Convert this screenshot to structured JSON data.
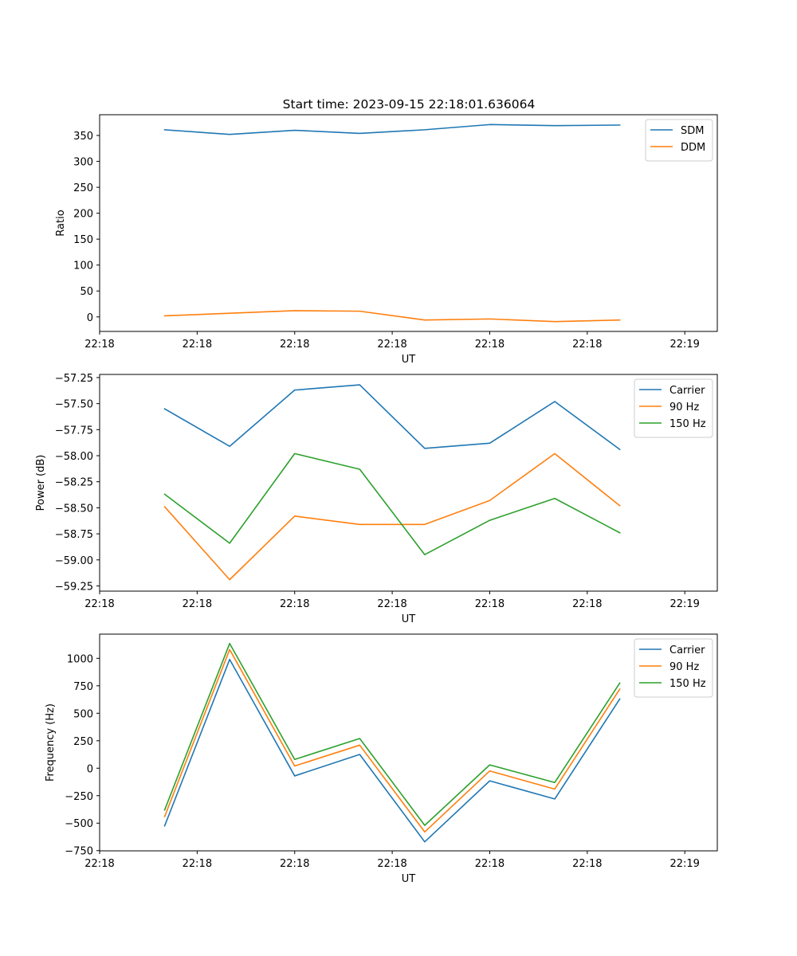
{
  "title": "Start time: 2023-09-15 22:18:01.636064",
  "x_tick_labels": [
    "22:18",
    "22:18",
    "22:18",
    "22:18",
    "22:18",
    "22:18",
    "22:18"
  ],
  "x_end_tick_label": "22:19",
  "colors": {
    "blue": "#1f77b4",
    "orange": "#ff7f0e",
    "green": "#2ca02c"
  },
  "chart_data": [
    {
      "type": "line",
      "xlabel": "UT",
      "ylabel": "Ratio",
      "x": [
        1,
        2,
        3,
        4,
        5,
        6,
        7,
        8
      ],
      "xlim": [
        0,
        9.5
      ],
      "ylim": [
        -28,
        390
      ],
      "yticks": [
        0,
        50,
        100,
        150,
        200,
        250,
        300,
        350
      ],
      "ytick_labels": [
        "0",
        "50",
        "100",
        "150",
        "200",
        "250",
        "300",
        "350"
      ],
      "legend": "top-right",
      "series": [
        {
          "name": "SDM",
          "color": "#1f77b4",
          "values": [
            361,
            352,
            360,
            354,
            361,
            371,
            369,
            370
          ]
        },
        {
          "name": "DDM",
          "color": "#ff7f0e",
          "values": [
            2,
            7,
            12,
            11,
            -6,
            -4,
            -9,
            -6
          ]
        }
      ]
    },
    {
      "type": "line",
      "xlabel": "UT",
      "ylabel": "Power (dB)",
      "x": [
        1,
        2,
        3,
        4,
        5,
        6,
        7,
        8
      ],
      "xlim": [
        0,
        9.5
      ],
      "ylim": [
        -59.3,
        -57.22
      ],
      "yticks": [
        -59.25,
        -59.0,
        -58.75,
        -58.5,
        -58.25,
        -58.0,
        -57.75,
        -57.5,
        -57.25
      ],
      "ytick_labels": [
        "−59.25",
        "−59.00",
        "−58.75",
        "−58.50",
        "−58.25",
        "−58.00",
        "−57.75",
        "−57.50",
        "−57.25"
      ],
      "legend": "top-right",
      "series": [
        {
          "name": "Carrier",
          "color": "#1f77b4",
          "values": [
            -57.55,
            -57.91,
            -57.37,
            -57.32,
            -57.93,
            -57.88,
            -57.48,
            -57.94
          ]
        },
        {
          "name": "90 Hz",
          "color": "#ff7f0e",
          "values": [
            -58.49,
            -59.19,
            -58.58,
            -58.66,
            -58.66,
            -58.43,
            -57.98,
            -58.48
          ]
        },
        {
          "name": "150 Hz",
          "color": "#2ca02c",
          "values": [
            -58.37,
            -58.84,
            -57.98,
            -58.13,
            -58.95,
            -58.62,
            -58.41,
            -58.74
          ]
        }
      ]
    },
    {
      "type": "line",
      "xlabel": "UT",
      "ylabel": "Frequency (Hz)",
      "x": [
        1,
        2,
        3,
        4,
        5,
        6,
        7,
        8
      ],
      "xlim": [
        0,
        9.5
      ],
      "ylim": [
        -752,
        1220
      ],
      "yticks": [
        -750,
        -500,
        -250,
        0,
        250,
        500,
        750,
        1000
      ],
      "ytick_labels": [
        "−750",
        "−500",
        "−250",
        "0",
        "250",
        "500",
        "750",
        "1000"
      ],
      "legend": "top-right",
      "series": [
        {
          "name": "Carrier",
          "color": "#1f77b4",
          "values": [
            -525,
            990,
            -70,
            125,
            -670,
            -115,
            -280,
            630
          ]
        },
        {
          "name": "90 Hz",
          "color": "#ff7f0e",
          "values": [
            -440,
            1080,
            20,
            210,
            -580,
            -25,
            -190,
            720
          ]
        },
        {
          "name": "150 Hz",
          "color": "#2ca02c",
          "values": [
            -380,
            1135,
            80,
            270,
            -520,
            30,
            -130,
            775
          ]
        }
      ]
    }
  ]
}
